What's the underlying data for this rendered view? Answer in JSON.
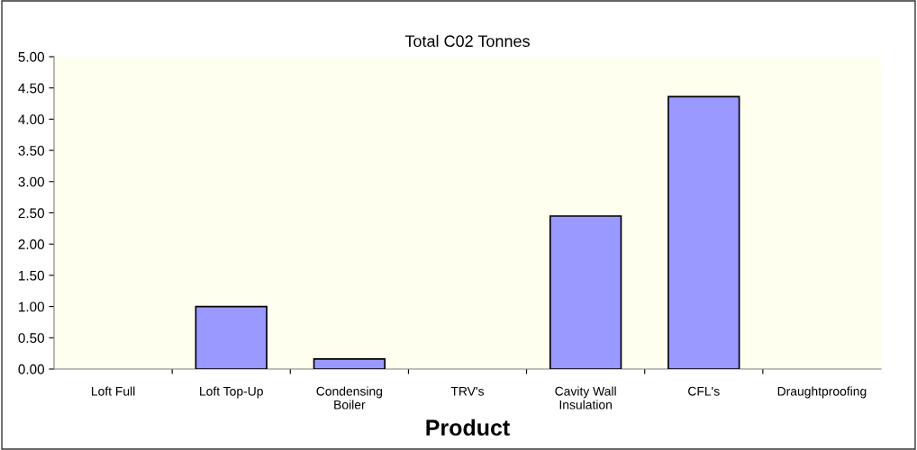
{
  "chart_data": {
    "type": "bar",
    "title": "Total C02 Tonnes",
    "xlabel": "Product",
    "categories": [
      "Loft Full",
      "Loft Top-Up",
      "Condensing\nBoiler",
      "TRV's",
      "Cavity Wall\nInsulation",
      "CFL's",
      "Draughtproofing"
    ],
    "values": [
      0,
      1.0,
      0.16,
      0,
      2.45,
      4.36,
      0
    ],
    "color": "#9999ff",
    "ylim": [
      0,
      5
    ],
    "yticks": [
      {
        "value": 0,
        "label": "0.00"
      },
      {
        "value": 0.5,
        "label": "0.50"
      },
      {
        "value": 1,
        "label": "1.00"
      },
      {
        "value": 1.5,
        "label": "1.50"
      },
      {
        "value": 2,
        "label": "2.00"
      },
      {
        "value": 2.5,
        "label": "2.50"
      },
      {
        "value": 3,
        "label": "3.00"
      },
      {
        "value": 3.5,
        "label": "3.50"
      },
      {
        "value": 4,
        "label": "4.00"
      },
      {
        "value": 4.5,
        "label": "4.50"
      },
      {
        "value": 5,
        "label": "5.00"
      }
    ],
    "grid": false,
    "legend": false
  }
}
